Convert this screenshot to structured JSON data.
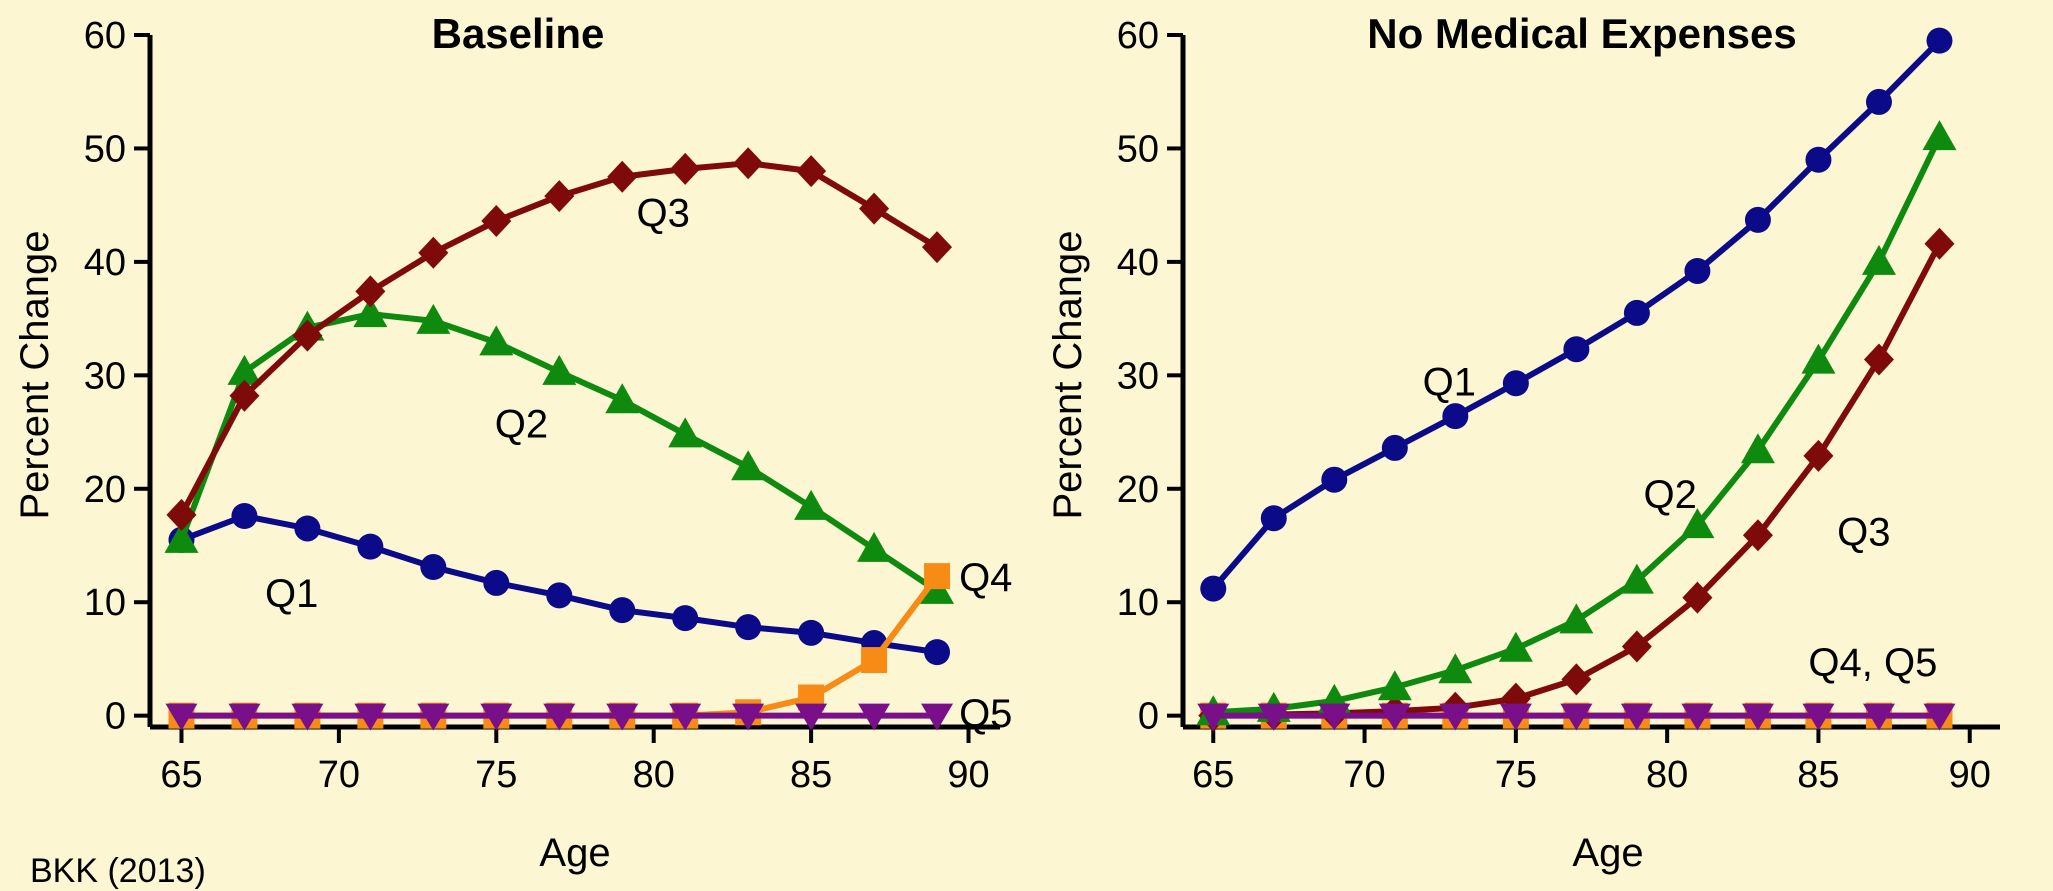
{
  "colors": {
    "Q1": "#0b0b8a",
    "Q2": "#0e8a0e",
    "Q3": "#7f0a0a",
    "Q4": "#f78b16",
    "Q5": "#7a0f8a",
    "background": "#fdf6d3"
  },
  "credit": "BKK (2013)",
  "chart_data": [
    {
      "type": "line",
      "title": "Baseline",
      "xlabel": "Age",
      "ylabel": "Percent Change",
      "xlim": [
        64,
        91
      ],
      "ylim": [
        -1,
        60
      ],
      "xticks": [
        65,
        70,
        75,
        80,
        85,
        90
      ],
      "yticks": [
        0,
        10,
        20,
        30,
        40,
        50,
        60
      ],
      "grid": false,
      "x": [
        65,
        67,
        69,
        71,
        73,
        75,
        77,
        79,
        81,
        83,
        85,
        87,
        89
      ],
      "series": [
        {
          "name": "Q1",
          "marker": "circle",
          "values": [
            15.5,
            17.6,
            16.5,
            14.9,
            13.1,
            11.7,
            10.6,
            9.3,
            8.6,
            7.8,
            7.3,
            6.4,
            5.6
          ]
        },
        {
          "name": "Q2",
          "marker": "triangle-up",
          "values": [
            15.5,
            30.3,
            34.2,
            35.4,
            34.8,
            32.9,
            30.3,
            27.8,
            24.8,
            21.9,
            18.4,
            14.7,
            11.0
          ]
        },
        {
          "name": "Q3",
          "marker": "diamond",
          "values": [
            17.7,
            28.2,
            33.5,
            37.4,
            40.8,
            43.6,
            45.8,
            47.5,
            48.2,
            48.7,
            48.0,
            44.7,
            41.3
          ]
        },
        {
          "name": "Q4",
          "marker": "square",
          "values": [
            0,
            0,
            0,
            0,
            0,
            0,
            0,
            0,
            0,
            0.3,
            1.6,
            4.9,
            12.3
          ]
        },
        {
          "name": "Q5",
          "marker": "triangle-down",
          "values": [
            0,
            0,
            0,
            0,
            0,
            0,
            0,
            0,
            0,
            0,
            0,
            0,
            0
          ]
        }
      ],
      "annotations": [
        {
          "text": "Q3",
          "x": 80.3,
          "y": 43.1,
          "anchor": "middle"
        },
        {
          "text": "Q2",
          "x": 75.8,
          "y": 24.5,
          "anchor": "middle"
        },
        {
          "text": "Q1",
          "x": 68.5,
          "y": 9.6,
          "anchor": "middle"
        },
        {
          "text": "Q4",
          "x": 89.7,
          "y": 11.0,
          "anchor": "start"
        },
        {
          "text": "Q5",
          "x": 89.7,
          "y": -1.0,
          "anchor": "start"
        }
      ]
    },
    {
      "type": "line",
      "title": "No Medical Expenses",
      "xlabel": "Age",
      "ylabel": "Percent Change",
      "xlim": [
        64,
        91
      ],
      "ylim": [
        -1,
        60
      ],
      "xticks": [
        65,
        70,
        75,
        80,
        85,
        90
      ],
      "yticks": [
        0,
        10,
        20,
        30,
        40,
        50,
        60
      ],
      "grid": false,
      "x": [
        65,
        67,
        69,
        71,
        73,
        75,
        77,
        79,
        81,
        83,
        85,
        87,
        89
      ],
      "series": [
        {
          "name": "Q4",
          "marker": "square",
          "values": [
            0,
            0,
            0,
            0,
            0,
            0,
            0,
            0,
            0,
            0,
            0,
            0,
            0
          ]
        },
        {
          "name": "Q3",
          "marker": "diamond",
          "values": [
            0,
            0.1,
            0.2,
            0.4,
            0.7,
            1.5,
            3.2,
            6.1,
            10.4,
            15.9,
            22.9,
            31.4,
            41.6
          ]
        },
        {
          "name": "Q2",
          "marker": "triangle-up",
          "values": [
            0.3,
            0.6,
            1.3,
            2.5,
            4.0,
            5.9,
            8.4,
            11.9,
            16.8,
            23.4,
            31.3,
            40.0,
            51.0
          ]
        },
        {
          "name": "Q1",
          "marker": "circle",
          "values": [
            11.2,
            17.4,
            20.8,
            23.6,
            26.4,
            29.3,
            32.3,
            35.5,
            39.2,
            43.7,
            49.0,
            54.1,
            59.5
          ]
        },
        {
          "name": "Q5",
          "marker": "triangle-down",
          "values": [
            0,
            0,
            0,
            0,
            0,
            0,
            0,
            0,
            0,
            0,
            0,
            0,
            0
          ]
        }
      ],
      "annotations": [
        {
          "text": "Q1",
          "x": 72.8,
          "y": 28.2,
          "anchor": "middle"
        },
        {
          "text": "Q2",
          "x": 80.1,
          "y": 18.3,
          "anchor": "middle"
        },
        {
          "text": "Q3",
          "x": 86.5,
          "y": 15.0,
          "anchor": "middle"
        },
        {
          "text": "Q4, Q5",
          "x": 86.8,
          "y": 3.5,
          "anchor": "middle"
        }
      ]
    }
  ]
}
